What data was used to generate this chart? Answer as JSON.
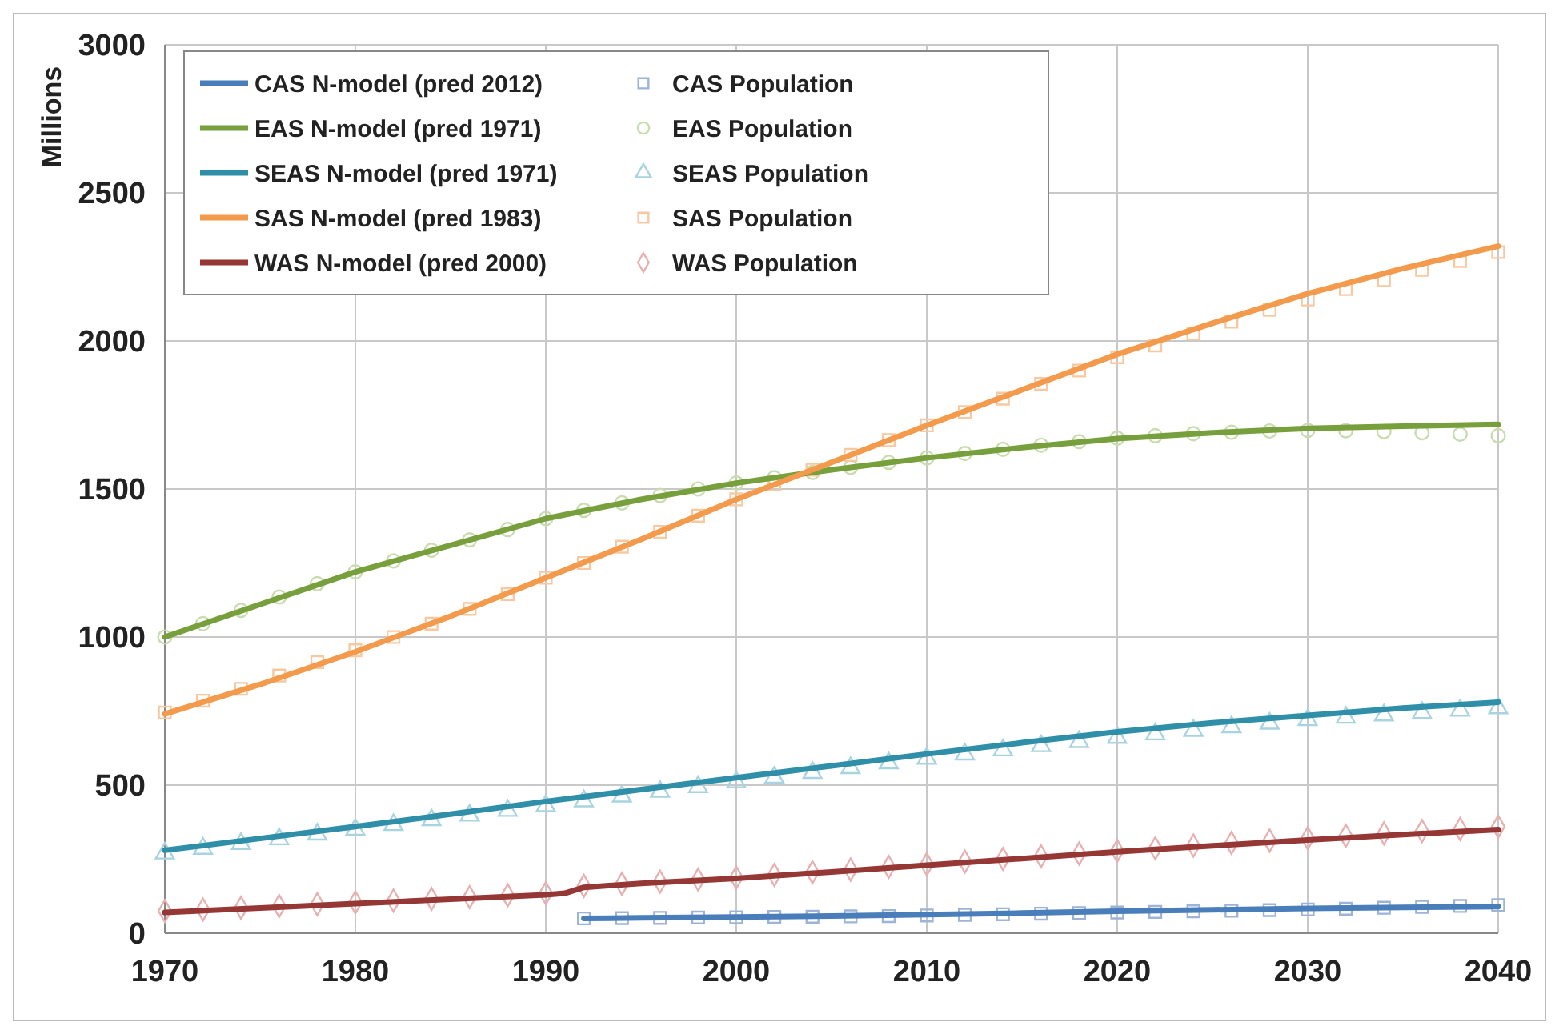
{
  "chart_data": {
    "type": "line",
    "ylabel": "Millions",
    "xlim": [
      1970,
      2040
    ],
    "ylim": [
      0,
      3000
    ],
    "xticks": [
      1970,
      1980,
      1990,
      2000,
      2010,
      2020,
      2030,
      2040
    ],
    "yticks": [
      0,
      500,
      1000,
      1500,
      2000,
      2500,
      3000
    ],
    "grid": true,
    "legend": "top left",
    "series": [
      {
        "name": "CAS N-model (pred 2012)",
        "type": "line",
        "marker": "none",
        "color": "#4a7ebb",
        "x": [
          1992,
          1995,
          2000,
          2005,
          2010,
          2015,
          2020,
          2025,
          2030,
          2035,
          2040
        ],
        "values": [
          50,
          52,
          55,
          58,
          63,
          68,
          74,
          79,
          84,
          87,
          90
        ]
      },
      {
        "name": "EAS N-model (pred 1971)",
        "type": "line",
        "marker": "none",
        "color": "#77a03c",
        "x": [
          1970,
          1975,
          1980,
          1985,
          1990,
          1995,
          2000,
          2005,
          2010,
          2015,
          2020,
          2025,
          2030,
          2035,
          2040
        ],
        "values": [
          1000,
          1110,
          1220,
          1310,
          1400,
          1465,
          1520,
          1565,
          1605,
          1640,
          1670,
          1690,
          1705,
          1712,
          1718
        ]
      },
      {
        "name": "SEAS N-model (pred 1971)",
        "type": "line",
        "marker": "none",
        "color": "#2f8fa8",
        "x": [
          1970,
          1975,
          1980,
          1985,
          1990,
          1995,
          2000,
          2005,
          2010,
          2015,
          2020,
          2025,
          2030,
          2035,
          2040
        ],
        "values": [
          280,
          320,
          360,
          402,
          445,
          485,
          525,
          565,
          605,
          643,
          680,
          710,
          735,
          760,
          780
        ]
      },
      {
        "name": "SAS N-model (pred 1983)",
        "type": "line",
        "marker": "none",
        "color": "#f49a4c",
        "x": [
          1970,
          1975,
          1980,
          1985,
          1990,
          1995,
          2000,
          2005,
          2010,
          2015,
          2020,
          2025,
          2030,
          2035,
          2040
        ],
        "values": [
          740,
          840,
          950,
          1070,
          1200,
          1330,
          1465,
          1590,
          1715,
          1835,
          1955,
          2060,
          2160,
          2245,
          2320
        ]
      },
      {
        "name": "WAS N-model (pred 2000)",
        "type": "line",
        "marker": "none",
        "color": "#953735",
        "x": [
          1970,
          1975,
          1980,
          1985,
          1990,
          1991,
          1992,
          1995,
          2000,
          2005,
          2010,
          2015,
          2020,
          2025,
          2030,
          2035,
          2040
        ],
        "values": [
          70,
          85,
          100,
          115,
          130,
          135,
          155,
          168,
          185,
          207,
          230,
          252,
          275,
          295,
          315,
          333,
          350
        ]
      },
      {
        "name": "CAS Population",
        "type": "scatter",
        "marker": "square",
        "color": "#9db4d8",
        "x": [
          1992,
          1994,
          1996,
          1998,
          2000,
          2002,
          2004,
          2006,
          2008,
          2010,
          2012,
          2014,
          2016,
          2018,
          2020,
          2022,
          2024,
          2026,
          2028,
          2030,
          2032,
          2034,
          2036,
          2038,
          2040
        ],
        "values": [
          50,
          51,
          52,
          53,
          54,
          55,
          56,
          57,
          58,
          60,
          62,
          64,
          66,
          68,
          70,
          72,
          74,
          76,
          78,
          80,
          83,
          86,
          89,
          92,
          95
        ]
      },
      {
        "name": "EAS Population",
        "type": "scatter",
        "marker": "circle",
        "color": "#c8dcae",
        "x": [
          1970,
          1972,
          1974,
          1976,
          1978,
          1980,
          1982,
          1984,
          1986,
          1988,
          1990,
          1992,
          1994,
          1996,
          1998,
          2000,
          2002,
          2004,
          2006,
          2008,
          2010,
          2012,
          2014,
          2016,
          2018,
          2020,
          2022,
          2024,
          2026,
          2028,
          2030,
          2032,
          2034,
          2036,
          2038,
          2040
        ],
        "values": [
          1000,
          1045,
          1090,
          1135,
          1180,
          1220,
          1257,
          1293,
          1328,
          1363,
          1400,
          1428,
          1453,
          1478,
          1500,
          1520,
          1538,
          1556,
          1573,
          1590,
          1605,
          1620,
          1634,
          1648,
          1660,
          1672,
          1680,
          1687,
          1692,
          1696,
          1698,
          1697,
          1694,
          1690,
          1685,
          1680
        ]
      },
      {
        "name": "SEAS Population",
        "type": "scatter",
        "marker": "triangle",
        "color": "#a8d4e0",
        "x": [
          1970,
          1972,
          1974,
          1976,
          1978,
          1980,
          1982,
          1984,
          1986,
          1988,
          1990,
          1992,
          1994,
          1996,
          1998,
          2000,
          2002,
          2004,
          2006,
          2008,
          2010,
          2012,
          2014,
          2016,
          2018,
          2020,
          2022,
          2024,
          2026,
          2028,
          2030,
          2032,
          2034,
          2036,
          2038,
          2040
        ],
        "values": [
          270,
          286,
          302,
          318,
          334,
          350,
          366,
          382,
          398,
          414,
          430,
          446,
          462,
          478,
          494,
          510,
          526,
          542,
          558,
          574,
          590,
          604,
          618,
          632,
          646,
          660,
          672,
          684,
          696,
          708,
          720,
          728,
          736,
          744,
          752,
          760
        ]
      },
      {
        "name": "SAS Population",
        "type": "scatter",
        "marker": "square",
        "color": "#f8c9a0",
        "x": [
          1970,
          1972,
          1974,
          1976,
          1978,
          1980,
          1982,
          1984,
          1986,
          1988,
          1990,
          1992,
          1994,
          1996,
          1998,
          2000,
          2002,
          2004,
          2006,
          2008,
          2010,
          2012,
          2014,
          2016,
          2018,
          2020,
          2022,
          2024,
          2026,
          2028,
          2030,
          2032,
          2034,
          2036,
          2038,
          2040
        ],
        "values": [
          745,
          785,
          825,
          870,
          915,
          955,
          1000,
          1045,
          1095,
          1145,
          1200,
          1250,
          1305,
          1355,
          1410,
          1465,
          1515,
          1565,
          1615,
          1665,
          1715,
          1760,
          1805,
          1855,
          1900,
          1945,
          1985,
          2025,
          2065,
          2105,
          2140,
          2175,
          2205,
          2240,
          2270,
          2300
        ]
      },
      {
        "name": "WAS Population",
        "type": "scatter",
        "marker": "diamond",
        "color": "#e8b0b0",
        "x": [
          1970,
          1972,
          1974,
          1976,
          1978,
          1980,
          1982,
          1984,
          1986,
          1988,
          1990,
          1992,
          1994,
          1996,
          1998,
          2000,
          2002,
          2004,
          2006,
          2008,
          2010,
          2012,
          2014,
          2016,
          2018,
          2020,
          2022,
          2024,
          2026,
          2028,
          2030,
          2032,
          2034,
          2036,
          2038,
          2040
        ],
        "values": [
          75,
          80,
          86,
          92,
          98,
          104,
          110,
          116,
          122,
          128,
          135,
          160,
          167,
          174,
          181,
          188,
          197,
          206,
          215,
          224,
          233,
          242,
          251,
          260,
          269,
          278,
          287,
          296,
          305,
          313,
          321,
          329,
          337,
          345,
          352,
          360
        ]
      }
    ]
  }
}
